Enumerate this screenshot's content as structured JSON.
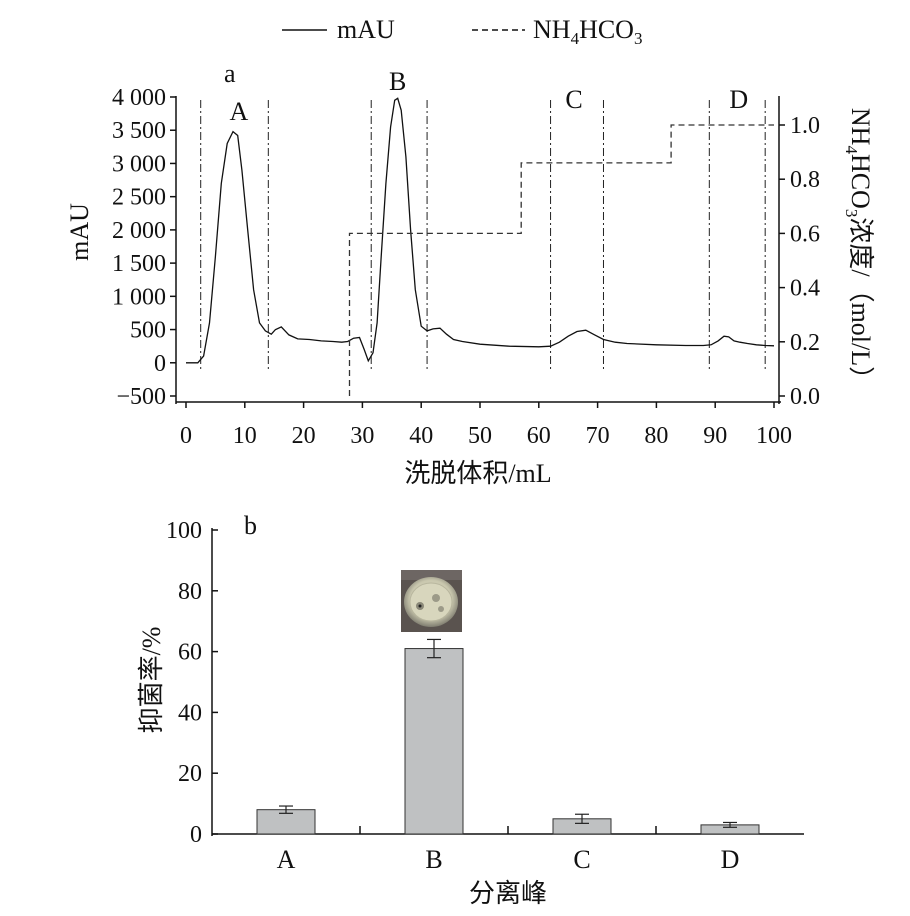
{
  "chart_data": [
    {
      "panel": "a",
      "type": "line",
      "legend": {
        "position": "top",
        "items": [
          {
            "name": "mAU",
            "line": "solid"
          },
          {
            "name_main": "NH",
            "sub1": "4",
            "name_mid": "HCO",
            "sub2": "3",
            "line": "dashed"
          }
        ]
      },
      "xlabel": "洗脱体积/mL",
      "ylabel_left": "mAU",
      "ylabel_right_parts": [
        "NH",
        "4",
        "HCO",
        "3",
        "浓度/（mol/L）"
      ],
      "xlim": [
        0,
        100
      ],
      "ylim_left": [
        -500,
        4000
      ],
      "ylim_right": [
        0.0,
        1.1
      ],
      "x_ticks": [
        "0",
        "10",
        "20",
        "30",
        "40",
        "50",
        "60",
        "70",
        "80",
        "90",
        "100"
      ],
      "y_left_ticks": [
        "4 000",
        "3 500",
        "3 000",
        "2 500",
        "2 000",
        "1 500",
        "1 000",
        "500",
        "0",
        "−500"
      ],
      "y_right_ticks": [
        "1.0",
        "0.8",
        "0.6",
        "0.4",
        "0.2",
        "0.0"
      ],
      "peak_labels": [
        "A",
        "B",
        "C",
        "D"
      ],
      "peak_label_x": [
        9,
        36,
        66,
        94
      ],
      "fraction_boundaries": [
        2.5,
        14,
        31.5,
        41,
        62,
        71,
        89,
        98.5
      ],
      "series": [
        {
          "name": "mAU",
          "x": [
            0,
            2,
            3,
            4,
            5,
            6,
            7,
            8,
            8.8,
            9.5,
            10.5,
            11.5,
            12.5,
            13.5,
            14.5,
            15.2,
            16.2,
            17.5,
            19,
            21,
            23,
            25,
            26.5,
            27.5,
            28.5,
            29.5,
            30.3,
            31,
            31.8,
            32.5,
            33.2,
            34,
            34.8,
            35.5,
            36,
            36.6,
            37.4,
            38.2,
            39,
            40,
            41,
            42,
            43.2,
            44.3,
            45.5,
            47,
            50,
            55,
            60,
            62,
            63.5,
            65,
            66.5,
            68,
            69.5,
            71,
            73,
            75,
            80,
            85,
            88,
            89.3,
            90.5,
            91.5,
            92.3,
            93.2,
            94.2,
            95.5,
            97,
            98.5,
            100
          ],
          "y": [
            0,
            0,
            100,
            600,
            1600,
            2700,
            3300,
            3480,
            3420,
            2900,
            2000,
            1100,
            600,
            480,
            430,
            500,
            540,
            420,
            360,
            350,
            330,
            320,
            310,
            320,
            370,
            380,
            200,
            30,
            150,
            600,
            1600,
            2700,
            3550,
            3950,
            3980,
            3800,
            3100,
            2000,
            1100,
            550,
            480,
            510,
            520,
            430,
            350,
            320,
            280,
            250,
            240,
            250,
            310,
            400,
            470,
            490,
            420,
            350,
            310,
            290,
            270,
            260,
            260,
            270,
            330,
            400,
            390,
            330,
            310,
            290,
            270,
            260,
            255
          ]
        },
        {
          "name": "NH4HCO3",
          "x": [
            27.8,
            27.8,
            57,
            57,
            82.5,
            82.5,
            100
          ],
          "y": [
            0.0,
            0.6,
            0.6,
            0.86,
            0.86,
            1.0,
            1.0
          ]
        }
      ]
    },
    {
      "panel": "b",
      "type": "bar",
      "categories": [
        "A",
        "B",
        "C",
        "D"
      ],
      "values": [
        8,
        61,
        5,
        3
      ],
      "error": [
        1.2,
        3,
        1.5,
        0.8
      ],
      "xlabel": "分离峰",
      "ylabel": "抑菌率/%",
      "ylim": [
        0,
        100
      ],
      "y_ticks": [
        "100",
        "80",
        "60",
        "40",
        "20",
        "0"
      ],
      "bar_color": "#bfc1c2",
      "inset_image": "petri-dish-photo"
    }
  ]
}
